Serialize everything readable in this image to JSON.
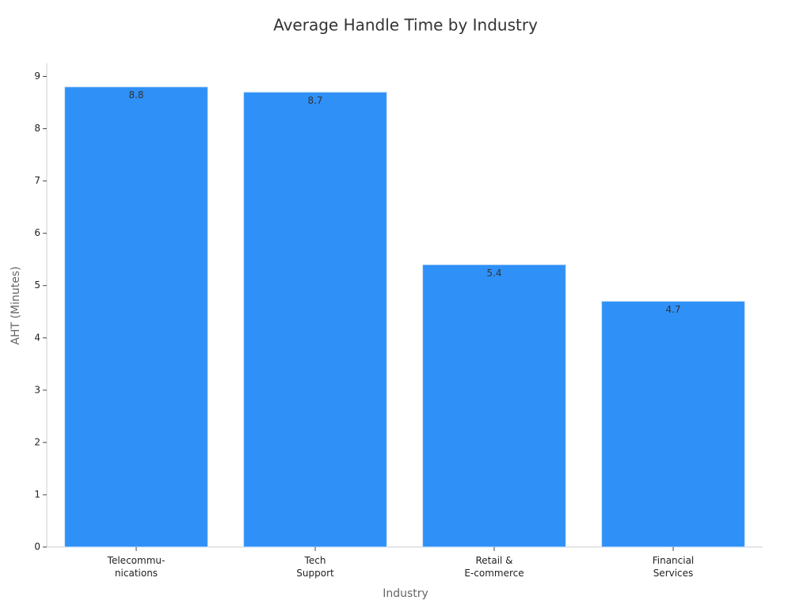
{
  "chart_data": {
    "type": "bar",
    "title": "Average Handle Time by Industry",
    "x_label": "Industry",
    "y_label": "AHT (Minutes)",
    "categories": [
      "Telecommu-\nnications",
      "Tech\nSupport",
      "Retail &\nE-commerce",
      "Financial\nServices"
    ],
    "values": [
      8.8,
      8.7,
      5.4,
      4.7
    ],
    "color": "#2f91f8",
    "ylim": [
      0,
      9.25
    ],
    "yticks": [
      0,
      1,
      2,
      3,
      4,
      5,
      6,
      7,
      8,
      9
    ],
    "grid": false
  }
}
